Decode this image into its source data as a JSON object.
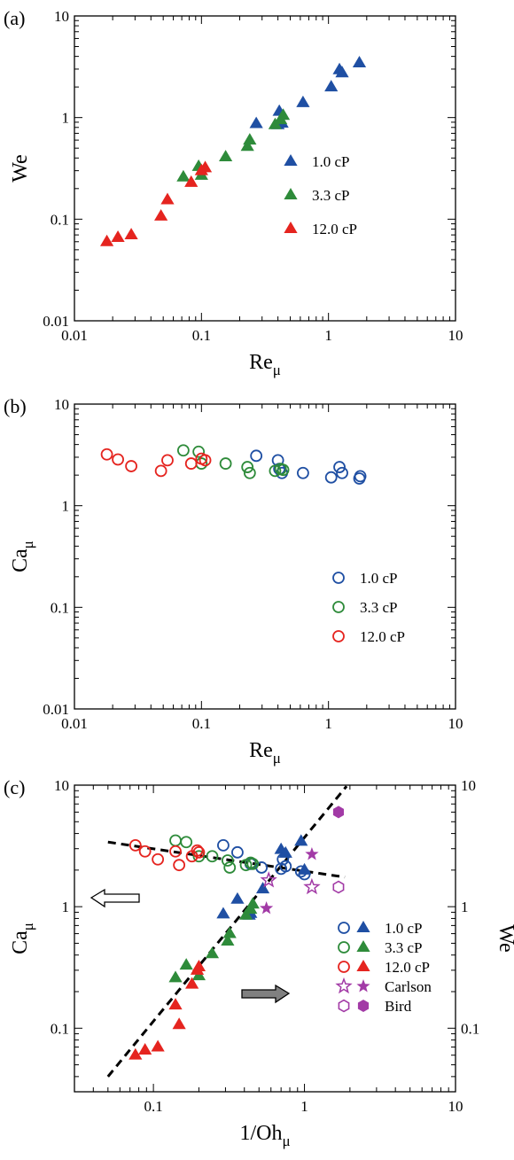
{
  "colors": {
    "blue": "#1f4fa3",
    "green": "#2e8b3a",
    "red": "#e5241f",
    "purple": "#a23aa6",
    "gray": "#808080",
    "black": "#000000"
  },
  "chart_data": [
    {
      "panel": "(a)",
      "type": "scatter",
      "xlabel": "Re",
      "xlabel_sub": "μ",
      "ylabel": "We",
      "xscale": "log",
      "yscale": "log",
      "xlim": [
        0.01,
        10
      ],
      "ylim": [
        0.01,
        10
      ],
      "xticks": [
        {
          "v": 0.01,
          "label": "0.01"
        },
        {
          "v": 0.1,
          "label": "0.1"
        },
        {
          "v": 1,
          "label": "1"
        },
        {
          "v": 10,
          "label": "10"
        }
      ],
      "yticks": [
        {
          "v": 0.01,
          "label": "0.01"
        },
        {
          "v": 0.1,
          "label": "0.1"
        },
        {
          "v": 1,
          "label": "1"
        },
        {
          "v": 10,
          "label": "10"
        }
      ],
      "legend_position": "right",
      "series": [
        {
          "name": "1.0 cP",
          "color": "blue",
          "marker": "triangle-filled",
          "points": [
            [
              0.27,
              0.87
            ],
            [
              0.4,
              0.85
            ],
            [
              0.41,
              1.15
            ],
            [
              0.43,
              0.88
            ],
            [
              0.63,
              1.4
            ],
            [
              1.05,
              2.0
            ],
            [
              1.22,
              2.95
            ],
            [
              1.28,
              2.75
            ],
            [
              1.75,
              3.45
            ]
          ]
        },
        {
          "name": "3.3 cP",
          "color": "green",
          "marker": "triangle-filled",
          "points": [
            [
              0.072,
              0.26
            ],
            [
              0.095,
              0.33
            ],
            [
              0.1,
              0.27
            ],
            [
              0.155,
              0.41
            ],
            [
              0.23,
              0.52
            ],
            [
              0.24,
              0.6
            ],
            [
              0.38,
              0.85
            ],
            [
              0.42,
              0.95
            ],
            [
              0.44,
              1.05
            ]
          ]
        },
        {
          "name": "12.0 cP",
          "color": "red",
          "marker": "triangle-filled",
          "points": [
            [
              0.018,
              0.06
            ],
            [
              0.022,
              0.066
            ],
            [
              0.028,
              0.07
            ],
            [
              0.048,
              0.107
            ],
            [
              0.054,
              0.155
            ],
            [
              0.083,
              0.23
            ],
            [
              0.1,
              0.3
            ],
            [
              0.107,
              0.32
            ]
          ]
        }
      ]
    },
    {
      "panel": "(b)",
      "type": "scatter",
      "xlabel": "Re",
      "xlabel_sub": "μ",
      "ylabel": "Ca",
      "ylabel_sub": "μ",
      "xscale": "log",
      "yscale": "log",
      "xlim": [
        0.01,
        10
      ],
      "ylim": [
        0.01,
        10
      ],
      "xticks": [
        {
          "v": 0.01,
          "label": "0.01"
        },
        {
          "v": 0.1,
          "label": "0.1"
        },
        {
          "v": 1,
          "label": "1"
        },
        {
          "v": 10,
          "label": "10"
        }
      ],
      "yticks": [
        {
          "v": 0.01,
          "label": "0.01"
        },
        {
          "v": 0.1,
          "label": "0.1"
        },
        {
          "v": 1,
          "label": "1"
        },
        {
          "v": 10,
          "label": "10"
        }
      ],
      "legend_position": "right",
      "series": [
        {
          "name": "1.0 cP",
          "color": "blue",
          "marker": "circle-open",
          "points": [
            [
              0.27,
              3.1
            ],
            [
              0.4,
              2.8
            ],
            [
              0.41,
              2.3
            ],
            [
              0.43,
              2.1
            ],
            [
              0.63,
              2.1
            ],
            [
              1.05,
              1.9
            ],
            [
              1.22,
              2.4
            ],
            [
              1.28,
              2.1
            ],
            [
              1.75,
              1.85
            ],
            [
              1.78,
              1.95
            ]
          ]
        },
        {
          "name": "3.3 cP",
          "color": "green",
          "marker": "circle-open",
          "points": [
            [
              0.072,
              3.5
            ],
            [
              0.095,
              3.4
            ],
            [
              0.1,
              2.6
            ],
            [
              0.155,
              2.6
            ],
            [
              0.23,
              2.4
            ],
            [
              0.24,
              2.1
            ],
            [
              0.38,
              2.2
            ],
            [
              0.42,
              2.3
            ],
            [
              0.44,
              2.25
            ]
          ]
        },
        {
          "name": "12.0 cP",
          "color": "red",
          "marker": "circle-open",
          "points": [
            [
              0.018,
              3.2
            ],
            [
              0.022,
              2.85
            ],
            [
              0.028,
              2.45
            ],
            [
              0.048,
              2.2
            ],
            [
              0.054,
              2.8
            ],
            [
              0.083,
              2.6
            ],
            [
              0.1,
              2.9
            ],
            [
              0.107,
              2.8
            ]
          ]
        }
      ]
    },
    {
      "panel": "(c)",
      "type": "scatter",
      "xlabel": "1/Oh",
      "xlabel_sub": "μ",
      "ylabel": "Ca",
      "ylabel_sub": "μ",
      "ylabel_right": "We",
      "xscale": "log",
      "yscale": "log",
      "xlim": [
        0.03,
        10
      ],
      "ylim": [
        0.03,
        10
      ],
      "xticks": [
        {
          "v": 0.1,
          "label": "0.1"
        },
        {
          "v": 1,
          "label": "1"
        },
        {
          "v": 10,
          "label": "10"
        }
      ],
      "yticks": [
        {
          "v": 0.1,
          "label": "0.1"
        },
        {
          "v": 1,
          "label": "1"
        },
        {
          "v": 10,
          "label": "10"
        }
      ],
      "yticks_right": [
        {
          "v": 0.1,
          "label": "0.1"
        },
        {
          "v": 1,
          "label": "1"
        },
        {
          "v": 10,
          "label": "10"
        }
      ],
      "legend_position": "bottom-right",
      "series": [
        {
          "name": "1.0 cP",
          "color": "blue",
          "marker": "circle-open",
          "axis": "left",
          "points": [
            [
              0.29,
              3.2
            ],
            [
              0.36,
              2.8
            ],
            [
              0.44,
              2.25
            ],
            [
              0.52,
              2.1
            ],
            [
              0.7,
              2.05
            ],
            [
              0.72,
              2.45
            ],
            [
              0.75,
              2.15
            ],
            [
              0.95,
              1.95
            ],
            [
              1.0,
              1.85
            ]
          ]
        },
        {
          "name": "1.0 cP",
          "color": "blue",
          "marker": "triangle-filled",
          "axis": "right",
          "points": [
            [
              0.29,
              0.87
            ],
            [
              0.36,
              1.15
            ],
            [
              0.43,
              0.85
            ],
            [
              0.44,
              0.88
            ],
            [
              0.53,
              1.4
            ],
            [
              0.7,
              2.95
            ],
            [
              0.75,
              2.75
            ],
            [
              0.95,
              3.45
            ],
            [
              1.0,
              2.0
            ]
          ]
        },
        {
          "name": "3.3 cP",
          "color": "green",
          "marker": "circle-open",
          "axis": "left",
          "points": [
            [
              0.14,
              3.5
            ],
            [
              0.165,
              3.4
            ],
            [
              0.2,
              2.6
            ],
            [
              0.245,
              2.6
            ],
            [
              0.31,
              2.4
            ],
            [
              0.32,
              2.1
            ],
            [
              0.41,
              2.2
            ],
            [
              0.44,
              2.3
            ],
            [
              0.455,
              2.25
            ]
          ]
        },
        {
          "name": "3.3 cP",
          "color": "green",
          "marker": "triangle-filled",
          "axis": "right",
          "points": [
            [
              0.14,
              0.26
            ],
            [
              0.165,
              0.33
            ],
            [
              0.2,
              0.27
            ],
            [
              0.245,
              0.41
            ],
            [
              0.31,
              0.52
            ],
            [
              0.32,
              0.6
            ],
            [
              0.41,
              0.85
            ],
            [
              0.44,
              0.95
            ],
            [
              0.455,
              1.05
            ]
          ]
        },
        {
          "name": "12.0 cP",
          "color": "red",
          "marker": "circle-open",
          "axis": "left",
          "points": [
            [
              0.076,
              3.2
            ],
            [
              0.088,
              2.85
            ],
            [
              0.107,
              2.45
            ],
            [
              0.14,
              2.85
            ],
            [
              0.148,
              2.2
            ],
            [
              0.18,
              2.6
            ],
            [
              0.195,
              2.9
            ],
            [
              0.2,
              2.8
            ]
          ]
        },
        {
          "name": "12.0 cP",
          "color": "red",
          "marker": "triangle-filled",
          "axis": "right",
          "points": [
            [
              0.076,
              0.06
            ],
            [
              0.088,
              0.066
            ],
            [
              0.107,
              0.07
            ],
            [
              0.14,
              0.155
            ],
            [
              0.148,
              0.107
            ],
            [
              0.18,
              0.23
            ],
            [
              0.195,
              0.3
            ],
            [
              0.2,
              0.32
            ]
          ]
        },
        {
          "name": "Carlson",
          "color": "purple",
          "marker": "star-open",
          "axis": "left",
          "points": [
            [
              0.58,
              1.65
            ],
            [
              1.12,
              1.45
            ]
          ]
        },
        {
          "name": "Carlson",
          "color": "purple",
          "marker": "star-filled",
          "axis": "right",
          "points": [
            [
              0.56,
              0.97
            ],
            [
              1.12,
              2.7
            ]
          ]
        },
        {
          "name": "Bird",
          "color": "purple",
          "marker": "hexagon-open",
          "axis": "left",
          "points": [
            [
              1.68,
              1.45
            ]
          ]
        },
        {
          "name": "Bird",
          "color": "purple",
          "marker": "hexagon-filled",
          "axis": "right",
          "points": [
            [
              1.68,
              6.0
            ]
          ]
        }
      ],
      "fit_lines": [
        {
          "name": "Ca fit",
          "style": "dashed",
          "from": [
            0.05,
            3.4
          ],
          "to": [
            1.85,
            1.75
          ]
        },
        {
          "name": "We fit",
          "style": "dashed",
          "from": [
            0.05,
            0.04
          ],
          "to": [
            1.9,
            9.8
          ]
        }
      ],
      "arrows": [
        {
          "name": "left-axis-arrow",
          "fill": "open",
          "direction": "left"
        },
        {
          "name": "right-axis-arrow",
          "fill": "gray",
          "direction": "right"
        }
      ],
      "legend_rows": [
        {
          "label": "1.0 cP",
          "color": "blue",
          "markers": [
            "circle-open",
            "triangle-filled"
          ]
        },
        {
          "label": "3.3 cP",
          "color": "green",
          "markers": [
            "circle-open",
            "triangle-filled"
          ]
        },
        {
          "label": "12.0 cP",
          "color": "red",
          "markers": [
            "circle-open",
            "triangle-filled"
          ]
        },
        {
          "label": "Carlson",
          "color": "purple",
          "markers": [
            "star-open",
            "star-filled"
          ]
        },
        {
          "label": "Bird",
          "color": "purple",
          "markers": [
            "hexagon-open",
            "hexagon-filled"
          ]
        }
      ]
    }
  ]
}
